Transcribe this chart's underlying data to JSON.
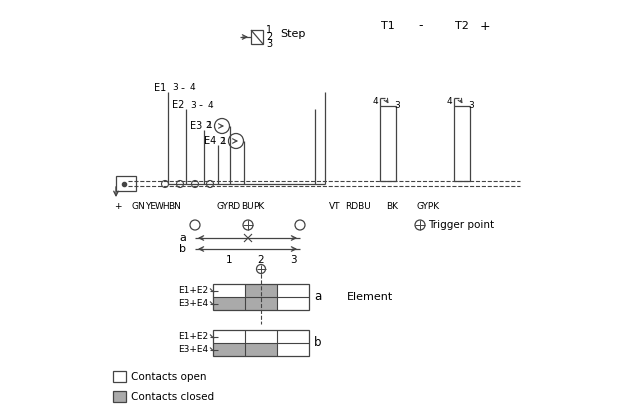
{
  "bg_color": "#ffffff",
  "line_color": "#444444",
  "gray_fill": "#aaaaaa",
  "step_label": "Step",
  "T1_label": "T1",
  "T2_label": "T2",
  "minus_label": "-",
  "plus_label": "+",
  "trigger_point_label": "Trigger point",
  "contacts_open_label": "Contacts open",
  "contacts_closed_label": "Contacts closed",
  "element_label": "Element"
}
